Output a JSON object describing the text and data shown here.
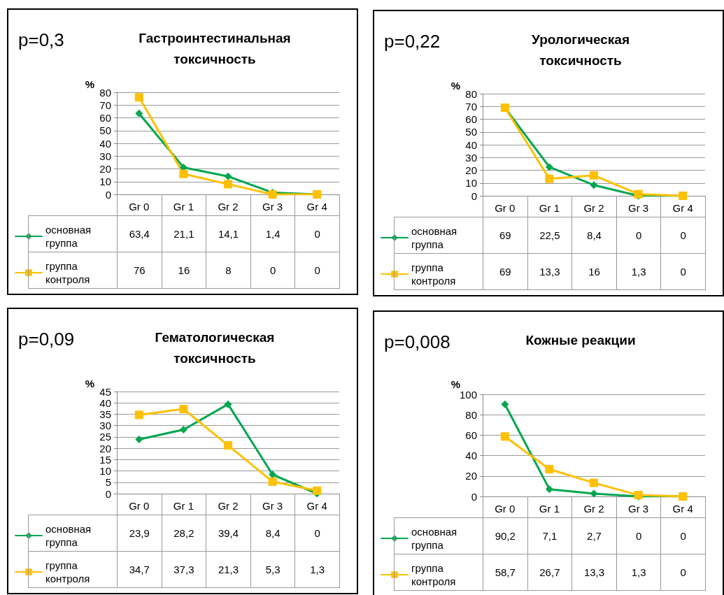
{
  "chart_data": [
    {
      "type": "line",
      "title": "Гастроинтестинальная токсичность",
      "annotations": [
        "p=0,3"
      ],
      "ylabel": "%",
      "categories": [
        "Gr 0",
        "Gr 1",
        "Gr 2",
        "Gr 3",
        "Gr 4"
      ],
      "ylim": [
        0,
        80
      ],
      "yticks": [
        0,
        10,
        20,
        30,
        40,
        50,
        60,
        70,
        80
      ],
      "grid": "y",
      "legend": "bottom left",
      "data_labels": true,
      "series": [
        {
          "name": "основная группа",
          "color": "#00a650",
          "marker": "diamond",
          "values": [
            63.4,
            21.1,
            14.1,
            1.4,
            0
          ],
          "value_labels": [
            "63,4",
            "21,1",
            "14,1",
            "1,4",
            "0"
          ]
        },
        {
          "name": "группа контроля",
          "color": "#ffc000",
          "marker": "square",
          "values": [
            76,
            16,
            8,
            0,
            0
          ],
          "value_labels": [
            "76",
            "16",
            "8",
            "0",
            "0"
          ]
        }
      ]
    },
    {
      "type": "line",
      "title": "Урологическая токсичность",
      "annotations": [
        "p=0,22"
      ],
      "ylabel": "%",
      "categories": [
        "Gr 0",
        "Gr 1",
        "Gr 2",
        "Gr 3",
        "Gr 4"
      ],
      "ylim": [
        0,
        80
      ],
      "yticks": [
        0,
        10,
        20,
        30,
        40,
        50,
        60,
        70,
        80
      ],
      "grid": "y",
      "legend": "bottom left",
      "data_labels": true,
      "series": [
        {
          "name": "основная группа",
          "color": "#00a650",
          "marker": "diamond",
          "values": [
            69,
            22.5,
            8.4,
            0,
            0
          ],
          "value_labels": [
            "69",
            "22,5",
            "8,4",
            "0",
            "0"
          ]
        },
        {
          "name": "группа контроля",
          "color": "#ffc000",
          "marker": "square",
          "values": [
            69,
            13.3,
            16,
            1.3,
            0
          ],
          "value_labels": [
            "69",
            "13,3",
            "16",
            "1,3",
            "0"
          ]
        }
      ]
    },
    {
      "type": "line",
      "title": "Гематологическая токсичность",
      "annotations": [
        "p=0,09"
      ],
      "ylabel": "%",
      "categories": [
        "Gr 0",
        "Gr 1",
        "Gr 2",
        "Gr 3",
        "Gr 4"
      ],
      "ylim": [
        0,
        45
      ],
      "yticks": [
        0,
        5,
        10,
        15,
        20,
        25,
        30,
        35,
        40,
        45
      ],
      "grid": "y",
      "legend": "bottom left",
      "data_labels": true,
      "series": [
        {
          "name": "основная группа",
          "color": "#00a650",
          "marker": "diamond",
          "values": [
            23.9,
            28.2,
            39.4,
            8.4,
            0
          ],
          "value_labels": [
            "23,9",
            "28,2",
            "39,4",
            "8,4",
            "0"
          ]
        },
        {
          "name": "группа контроля",
          "color": "#ffc000",
          "marker": "square",
          "values": [
            34.7,
            37.3,
            21.3,
            5.3,
            1.3
          ],
          "value_labels": [
            "34,7",
            "37,3",
            "21,3",
            "5,3",
            "1,3"
          ]
        }
      ]
    },
    {
      "type": "line",
      "title": "Кожные реакции",
      "annotations": [
        "p=0,008"
      ],
      "ylabel": "%",
      "categories": [
        "Gr 0",
        "Gr 1",
        "Gr 2",
        "Gr 3",
        "Gr 4"
      ],
      "ylim": [
        0,
        100
      ],
      "yticks": [
        0,
        20,
        40,
        60,
        80,
        100
      ],
      "grid": "y",
      "legend": "bottom left",
      "data_labels": true,
      "series": [
        {
          "name": "основная группа",
          "color": "#00a650",
          "marker": "diamond",
          "values": [
            90.2,
            7.1,
            2.7,
            0,
            0
          ],
          "value_labels": [
            "90,2",
            "7,1",
            "2,7",
            "0",
            "0"
          ]
        },
        {
          "name": "группа контроля",
          "color": "#ffc000",
          "marker": "square",
          "values": [
            58.7,
            26.7,
            13.3,
            1.3,
            0
          ],
          "value_labels": [
            "58,7",
            "26,7",
            "13,3",
            "1,3",
            "0"
          ]
        }
      ]
    }
  ]
}
